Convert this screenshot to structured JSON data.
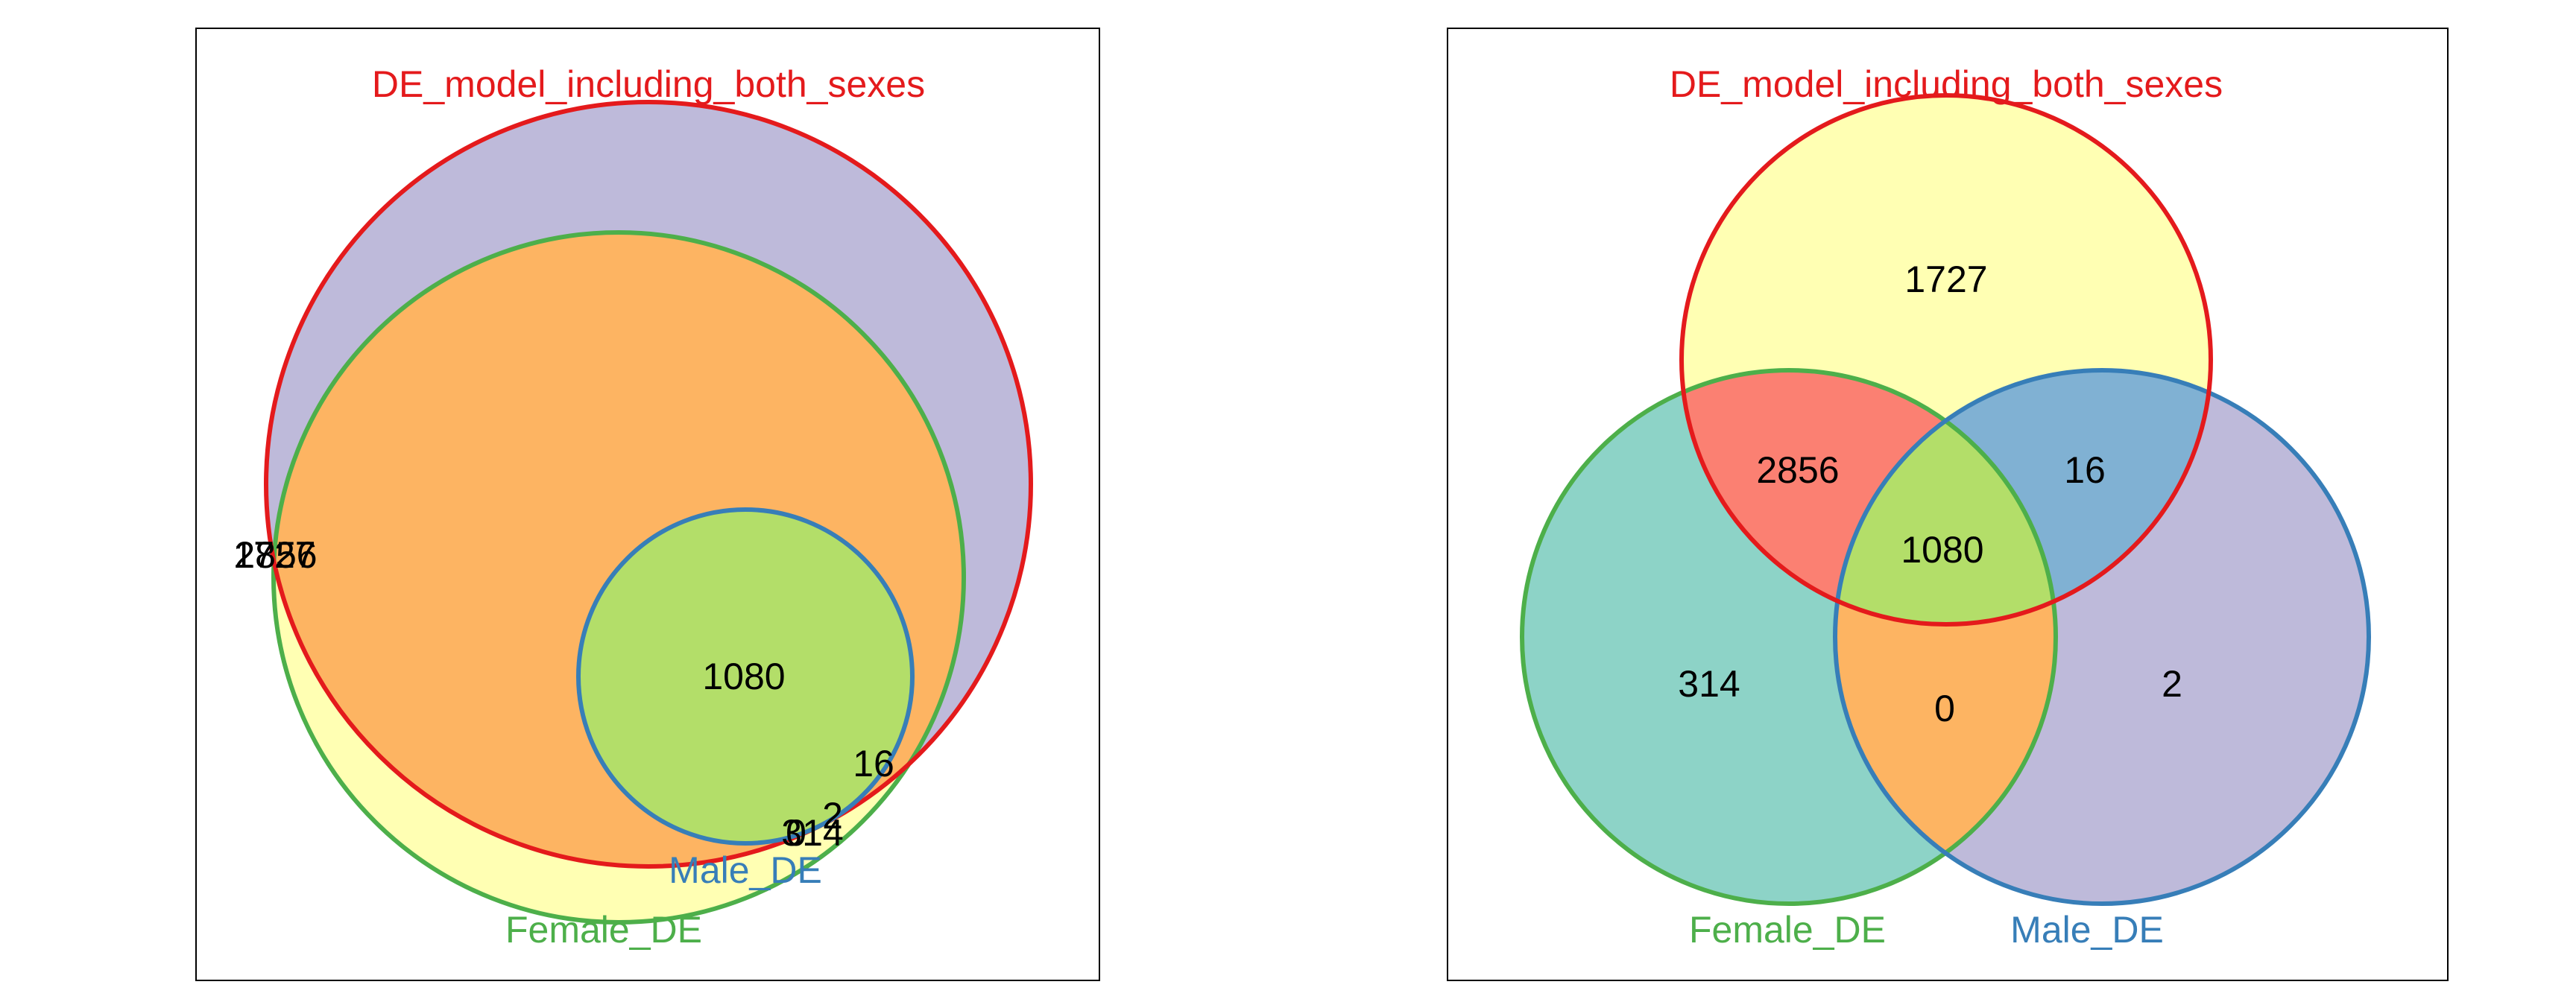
{
  "colors": {
    "frame": "#000000",
    "background": "#ffffff",
    "set_red": "#e41a1c",
    "set_green": "#4daf4a",
    "set_blue": "#377eb8",
    "fill_purple": "#bebada",
    "fill_orange": "#fdb462",
    "fill_lime": "#b3de69",
    "fill_yellow": "#ffffb3",
    "fill_teal": "#8dd3c7",
    "fill_salmon": "#fb8072",
    "fill_steel": "#80b1d3"
  },
  "left_panel": {
    "set_labels": {
      "model": "DE_model_including_both_sexes",
      "female": "Female_DE",
      "male": "Male_DE"
    },
    "counts": {
      "model_only": "1727",
      "model_female": "2856",
      "all_three": "1080",
      "model_male": "16",
      "male_only": "2",
      "female_only": "314",
      "female_male": "0"
    }
  },
  "right_panel": {
    "set_labels": {
      "model": "DE_model_including_both_sexes",
      "female": "Female_DE",
      "male": "Male_DE"
    },
    "counts": {
      "model_only": "1727",
      "model_female": "2856",
      "all_three": "1080",
      "model_male": "16",
      "male_only": "2",
      "female_only": "314",
      "female_male": "0"
    }
  }
}
